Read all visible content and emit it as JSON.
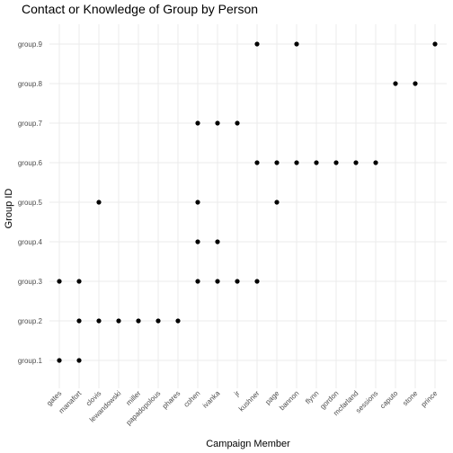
{
  "chart_data": {
    "type": "scatter",
    "title": "Contact or Knowledge of Group by Person",
    "xlabel": "Campaign Member",
    "ylabel": "Group ID",
    "x_categories": [
      "gates",
      "manafort",
      "clovis",
      "lewandowski",
      "miller",
      "papadopolous",
      "phares",
      "cohen",
      "ivanka",
      "jr",
      "kushner",
      "page",
      "bannon",
      "flynn",
      "gordon",
      "mcfarland",
      "sessions",
      "caputo",
      "stone",
      "prince"
    ],
    "y_categories": [
      "group.1",
      "group.2",
      "group.3",
      "group.4",
      "group.5",
      "group.6",
      "group.7",
      "group.8",
      "group.9"
    ],
    "grid": true,
    "legend": "none",
    "point_color": "#000000",
    "points": [
      {
        "x": "gates",
        "y": "group.1"
      },
      {
        "x": "gates",
        "y": "group.3"
      },
      {
        "x": "manafort",
        "y": "group.1"
      },
      {
        "x": "manafort",
        "y": "group.2"
      },
      {
        "x": "manafort",
        "y": "group.3"
      },
      {
        "x": "clovis",
        "y": "group.2"
      },
      {
        "x": "clovis",
        "y": "group.5"
      },
      {
        "x": "lewandowski",
        "y": "group.2"
      },
      {
        "x": "miller",
        "y": "group.2"
      },
      {
        "x": "papadopolous",
        "y": "group.2"
      },
      {
        "x": "phares",
        "y": "group.2"
      },
      {
        "x": "cohen",
        "y": "group.3"
      },
      {
        "x": "cohen",
        "y": "group.4"
      },
      {
        "x": "cohen",
        "y": "group.5"
      },
      {
        "x": "cohen",
        "y": "group.7"
      },
      {
        "x": "ivanka",
        "y": "group.3"
      },
      {
        "x": "ivanka",
        "y": "group.4"
      },
      {
        "x": "ivanka",
        "y": "group.7"
      },
      {
        "x": "jr",
        "y": "group.3"
      },
      {
        "x": "jr",
        "y": "group.7"
      },
      {
        "x": "kushner",
        "y": "group.3"
      },
      {
        "x": "kushner",
        "y": "group.6"
      },
      {
        "x": "kushner",
        "y": "group.9"
      },
      {
        "x": "page",
        "y": "group.5"
      },
      {
        "x": "page",
        "y": "group.6"
      },
      {
        "x": "bannon",
        "y": "group.6"
      },
      {
        "x": "bannon",
        "y": "group.9"
      },
      {
        "x": "flynn",
        "y": "group.6"
      },
      {
        "x": "gordon",
        "y": "group.6"
      },
      {
        "x": "mcfarland",
        "y": "group.6"
      },
      {
        "x": "sessions",
        "y": "group.6"
      },
      {
        "x": "caputo",
        "y": "group.8"
      },
      {
        "x": "stone",
        "y": "group.8"
      },
      {
        "x": "prince",
        "y": "group.9"
      }
    ]
  }
}
